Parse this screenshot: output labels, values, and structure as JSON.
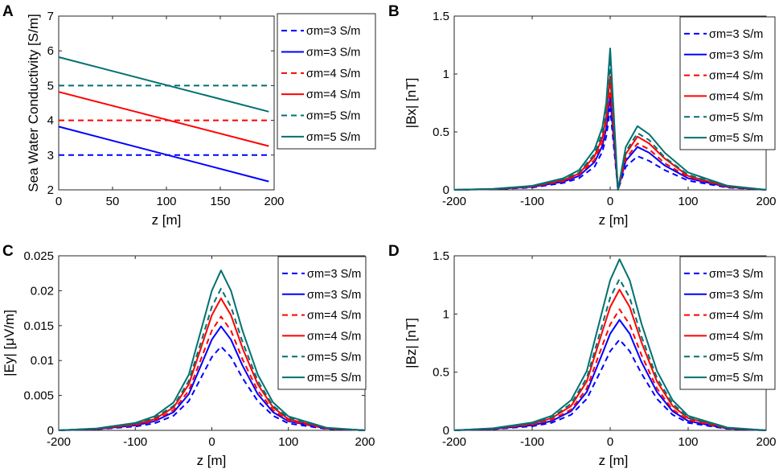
{
  "colors": {
    "blue": "#0000ff",
    "red": "#ff0000",
    "teal": "#007070"
  },
  "chart_data": [
    {
      "panel": "A",
      "type": "line",
      "xlabel": "z [m]",
      "ylabel": "Sea Water Conductivity [S/m]",
      "xlim": [
        0,
        200
      ],
      "ylim": [
        2,
        7
      ],
      "xticks": [
        0,
        50,
        100,
        150,
        200
      ],
      "yticks": [
        2,
        3,
        4,
        5,
        6,
        7
      ],
      "x": [
        0,
        195
      ],
      "series": [
        {
          "name": "σm=3 S/m",
          "style": "dashed",
          "color": "#0000ff",
          "values": [
            3,
            3
          ]
        },
        {
          "name": "σm=3 S/m",
          "style": "solid",
          "color": "#0000ff",
          "values": [
            3.82,
            2.24
          ]
        },
        {
          "name": "σm=4 S/m",
          "style": "dashed",
          "color": "#ff0000",
          "values": [
            4,
            4
          ]
        },
        {
          "name": "σm=4 S/m",
          "style": "solid",
          "color": "#ff0000",
          "values": [
            4.82,
            3.26
          ]
        },
        {
          "name": "σm=5 S/m",
          "style": "dashed",
          "color": "#007070",
          "values": [
            5,
            5
          ]
        },
        {
          "name": "σm=5 S/m",
          "style": "solid",
          "color": "#007070",
          "values": [
            5.82,
            4.25
          ]
        }
      ]
    },
    {
      "panel": "B",
      "type": "line",
      "xlabel": "z [m]",
      "ylabel": "|Bx| [nT]",
      "xlim": [
        -200,
        200
      ],
      "ylim": [
        0,
        1.5
      ],
      "xticks": [
        -200,
        -100,
        0,
        100,
        200
      ],
      "yticks": [
        0,
        0.5,
        1,
        1.5
      ],
      "x": [
        -200,
        -150,
        -100,
        -60,
        -40,
        -20,
        -10,
        -5,
        0,
        10,
        20,
        35,
        50,
        70,
        100,
        150,
        200
      ],
      "series": [
        {
          "name": "σm=3 S/m",
          "style": "dashed",
          "color": "#0000ff",
          "values": [
            0,
            0.005,
            0.02,
            0.06,
            0.1,
            0.2,
            0.33,
            0.46,
            0.7,
            0,
            0.2,
            0.29,
            0.25,
            0.17,
            0.08,
            0.02,
            0
          ]
        },
        {
          "name": "σm=3 S/m",
          "style": "solid",
          "color": "#0000ff",
          "values": [
            0,
            0.006,
            0.025,
            0.07,
            0.12,
            0.24,
            0.38,
            0.53,
            0.8,
            0,
            0.25,
            0.37,
            0.32,
            0.21,
            0.1,
            0.025,
            0
          ]
        },
        {
          "name": "σm=4 S/m",
          "style": "dashed",
          "color": "#ff0000",
          "values": [
            0,
            0.006,
            0.027,
            0.075,
            0.13,
            0.26,
            0.41,
            0.58,
            0.9,
            0,
            0.27,
            0.4,
            0.35,
            0.23,
            0.11,
            0.026,
            0
          ]
        },
        {
          "name": "σm=4 S/m",
          "style": "solid",
          "color": "#ff0000",
          "values": [
            0,
            0.007,
            0.03,
            0.085,
            0.14,
            0.29,
            0.45,
            0.63,
            0.98,
            0,
            0.31,
            0.46,
            0.4,
            0.27,
            0.12,
            0.03,
            0
          ]
        },
        {
          "name": "σm=5 S/m",
          "style": "dashed",
          "color": "#007070",
          "values": [
            0,
            0.007,
            0.032,
            0.09,
            0.15,
            0.31,
            0.49,
            0.68,
            1.1,
            0,
            0.33,
            0.49,
            0.43,
            0.28,
            0.13,
            0.032,
            0
          ]
        },
        {
          "name": "σm=5 S/m",
          "style": "solid",
          "color": "#007070",
          "values": [
            0,
            0.008,
            0.035,
            0.1,
            0.17,
            0.35,
            0.54,
            0.75,
            1.22,
            0,
            0.37,
            0.55,
            0.48,
            0.32,
            0.15,
            0.036,
            0
          ]
        }
      ]
    },
    {
      "panel": "C",
      "type": "line",
      "xlabel": "z [m]",
      "ylabel": "|Ey| [μV/m]",
      "xlim": [
        -200,
        200
      ],
      "ylim": [
        0,
        0.025
      ],
      "xticks": [
        -200,
        -100,
        0,
        100,
        200
      ],
      "yticks": [
        0,
        0.005,
        0.01,
        0.015,
        0.02,
        0.025
      ],
      "x": [
        -200,
        -150,
        -100,
        -75,
        -50,
        -30,
        -10,
        0,
        12,
        25,
        40,
        60,
        80,
        100,
        150,
        200
      ],
      "series": [
        {
          "name": "σm=3 S/m",
          "style": "dashed",
          "color": "#0000ff",
          "values": [
            0,
            0.00015,
            0.00055,
            0.001,
            0.0021,
            0.0042,
            0.0084,
            0.0105,
            0.012,
            0.0105,
            0.0075,
            0.0042,
            0.0021,
            0.001,
            0.0002,
            0
          ]
        },
        {
          "name": "σm=3 S/m",
          "style": "solid",
          "color": "#0000ff",
          "values": [
            0,
            0.00018,
            0.0007,
            0.0013,
            0.0026,
            0.0052,
            0.0104,
            0.013,
            0.0149,
            0.013,
            0.0093,
            0.0052,
            0.0026,
            0.0013,
            0.00025,
            0
          ]
        },
        {
          "name": "σm=4 S/m",
          "style": "dashed",
          "color": "#ff0000",
          "values": [
            0,
            0.0002,
            0.00075,
            0.0014,
            0.0029,
            0.0057,
            0.0114,
            0.0143,
            0.0163,
            0.0143,
            0.0102,
            0.0057,
            0.0029,
            0.0014,
            0.00027,
            0
          ]
        },
        {
          "name": "σm=4 S/m",
          "style": "solid",
          "color": "#ff0000",
          "values": [
            0,
            0.00023,
            0.00087,
            0.0016,
            0.0033,
            0.0066,
            0.0132,
            0.0165,
            0.0189,
            0.0165,
            0.0118,
            0.0066,
            0.0033,
            0.0016,
            0.0003,
            0
          ]
        },
        {
          "name": "σm=5 S/m",
          "style": "dashed",
          "color": "#007070",
          "values": [
            0,
            0.00025,
            0.00094,
            0.0018,
            0.0035,
            0.0071,
            0.0141,
            0.0177,
            0.0203,
            0.0177,
            0.0127,
            0.0071,
            0.0035,
            0.0018,
            0.00033,
            0
          ]
        },
        {
          "name": "σm=5 S/m",
          "style": "solid",
          "color": "#007070",
          "values": [
            0,
            0.00028,
            0.00107,
            0.002,
            0.004,
            0.008,
            0.016,
            0.02,
            0.0229,
            0.02,
            0.0143,
            0.008,
            0.004,
            0.002,
            0.00037,
            0
          ]
        }
      ]
    },
    {
      "panel": "D",
      "type": "line",
      "xlabel": "z [m]",
      "ylabel": "|Bz| [nT]",
      "xlim": [
        -200,
        200
      ],
      "ylim": [
        0,
        1.5
      ],
      "xticks": [
        -200,
        -100,
        0,
        100,
        200
      ],
      "yticks": [
        0,
        0.5,
        1,
        1.5
      ],
      "x": [
        -200,
        -150,
        -100,
        -75,
        -50,
        -30,
        -10,
        0,
        12,
        25,
        40,
        60,
        80,
        100,
        150,
        200
      ],
      "series": [
        {
          "name": "σm=3 S/m",
          "style": "dashed",
          "color": "#0000ff",
          "values": [
            0,
            0.01,
            0.035,
            0.065,
            0.135,
            0.27,
            0.54,
            0.68,
            0.78,
            0.68,
            0.49,
            0.27,
            0.135,
            0.065,
            0.013,
            0
          ]
        },
        {
          "name": "σm=3 S/m",
          "style": "solid",
          "color": "#0000ff",
          "values": [
            0,
            0.012,
            0.044,
            0.08,
            0.165,
            0.33,
            0.66,
            0.83,
            0.95,
            0.83,
            0.59,
            0.33,
            0.165,
            0.08,
            0.016,
            0
          ]
        },
        {
          "name": "σm=4 S/m",
          "style": "dashed",
          "color": "#ff0000",
          "values": [
            0,
            0.013,
            0.049,
            0.09,
            0.18,
            0.36,
            0.73,
            0.91,
            1.04,
            0.91,
            0.65,
            0.36,
            0.18,
            0.09,
            0.017,
            0
          ]
        },
        {
          "name": "σm=4 S/m",
          "style": "solid",
          "color": "#ff0000",
          "values": [
            0,
            0.015,
            0.057,
            0.105,
            0.21,
            0.42,
            0.85,
            1.06,
            1.21,
            1.06,
            0.76,
            0.42,
            0.21,
            0.105,
            0.02,
            0
          ]
        },
        {
          "name": "σm=5 S/m",
          "style": "dashed",
          "color": "#007070",
          "values": [
            0,
            0.016,
            0.06,
            0.11,
            0.23,
            0.45,
            0.91,
            1.14,
            1.3,
            1.14,
            0.81,
            0.45,
            0.23,
            0.11,
            0.021,
            0
          ]
        },
        {
          "name": "σm=5 S/m",
          "style": "solid",
          "color": "#007070",
          "values": [
            0,
            0.018,
            0.068,
            0.125,
            0.26,
            0.51,
            1.03,
            1.29,
            1.47,
            1.29,
            0.92,
            0.51,
            0.26,
            0.125,
            0.024,
            0
          ]
        }
      ]
    }
  ]
}
